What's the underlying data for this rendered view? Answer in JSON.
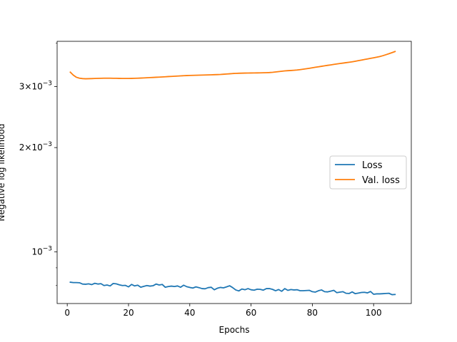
{
  "chart_data": {
    "type": "line",
    "title": "",
    "xlabel": "Epochs",
    "ylabel": "Negative log likelihood",
    "yscale": "log",
    "xlim": [
      -3.3,
      112.3
    ],
    "ylim": [
      0.00071,
      0.00405
    ],
    "grid": false,
    "legend_position": "center-right",
    "x_ticks": [
      0,
      20,
      40,
      60,
      80,
      100
    ],
    "x_tick_labels": [
      "0",
      "20",
      "40",
      "60",
      "80",
      "100"
    ],
    "y_ticks": [
      0.001,
      0.002,
      0.003
    ],
    "y_tick_labels": [
      {
        "base": "10",
        "exp": "−3"
      },
      {
        "coef": "2",
        "base": "10",
        "exp": "−3"
      },
      {
        "coef": "3",
        "base": "10",
        "exp": "−3"
      }
    ],
    "series": [
      {
        "name": "Loss",
        "color": "#1f77b4",
        "x": [
          1,
          2,
          3,
          4,
          5,
          6,
          7,
          8,
          9,
          10,
          11,
          12,
          13,
          14,
          15,
          16,
          17,
          18,
          19,
          20,
          21,
          22,
          23,
          24,
          25,
          26,
          27,
          28,
          29,
          30,
          31,
          32,
          33,
          34,
          35,
          36,
          37,
          38,
          39,
          40,
          41,
          42,
          43,
          44,
          45,
          46,
          47,
          48,
          49,
          50,
          51,
          52,
          53,
          54,
          55,
          56,
          57,
          58,
          59,
          60,
          61,
          62,
          63,
          64,
          65,
          66,
          67,
          68,
          69,
          70,
          71,
          72,
          73,
          74,
          75,
          76,
          77,
          78,
          79,
          80,
          81,
          82,
          83,
          84,
          85,
          86,
          87,
          88,
          89,
          90,
          91,
          92,
          93,
          94,
          95,
          96,
          97,
          98,
          99,
          100,
          101,
          102,
          103,
          104,
          105,
          106,
          107
        ],
        "values": [
          0.000818,
          0.000816,
          0.000816,
          0.000815,
          0.000808,
          0.000807,
          0.000809,
          0.000805,
          0.000812,
          0.000808,
          0.00081,
          0.0008,
          0.000803,
          0.000798,
          0.000811,
          0.000809,
          0.000804,
          0.0008,
          0.000801,
          0.000793,
          0.000806,
          0.000798,
          0.000802,
          0.000791,
          0.000796,
          0.0008,
          0.000797,
          0.000799,
          0.000808,
          0.000803,
          0.000806,
          0.000791,
          0.000795,
          0.000797,
          0.000795,
          0.000798,
          0.000791,
          0.000802,
          0.000794,
          0.00079,
          0.000787,
          0.000793,
          0.000789,
          0.000784,
          0.000783,
          0.000789,
          0.000791,
          0.000778,
          0.000786,
          0.00079,
          0.000788,
          0.000793,
          0.000799,
          0.000789,
          0.000777,
          0.000772,
          0.000782,
          0.000778,
          0.000784,
          0.000778,
          0.000776,
          0.000781,
          0.00078,
          0.000776,
          0.000784,
          0.000784,
          0.00078,
          0.000773,
          0.000779,
          0.00077,
          0.000784,
          0.000775,
          0.000779,
          0.000777,
          0.000778,
          0.000773,
          0.000773,
          0.000774,
          0.000775,
          0.000768,
          0.000766,
          0.000773,
          0.000777,
          0.000768,
          0.000767,
          0.000771,
          0.000775,
          0.000763,
          0.000766,
          0.000768,
          0.00076,
          0.000759,
          0.000767,
          0.000758,
          0.000761,
          0.000764,
          0.000765,
          0.000762,
          0.000769,
          0.000755,
          0.000757,
          0.000757,
          0.000758,
          0.000759,
          0.00076,
          0.000753,
          0.000754
        ]
      },
      {
        "name": "Val. loss",
        "color": "#ff7f0e",
        "x": [
          1,
          2,
          3,
          4,
          5,
          6,
          7,
          8,
          9,
          10,
          11,
          12,
          13,
          14,
          15,
          16,
          17,
          18,
          19,
          20,
          21,
          22,
          23,
          24,
          25,
          26,
          27,
          28,
          29,
          30,
          31,
          32,
          33,
          34,
          35,
          36,
          37,
          38,
          39,
          40,
          41,
          42,
          43,
          44,
          45,
          46,
          47,
          48,
          49,
          50,
          51,
          52,
          53,
          54,
          55,
          56,
          57,
          58,
          59,
          60,
          61,
          62,
          63,
          64,
          65,
          66,
          67,
          68,
          69,
          70,
          71,
          72,
          73,
          74,
          75,
          76,
          77,
          78,
          79,
          80,
          81,
          82,
          83,
          84,
          85,
          86,
          87,
          88,
          89,
          90,
          91,
          92,
          93,
          94,
          95,
          96,
          97,
          98,
          99,
          100,
          101,
          102,
          103,
          104,
          105,
          106,
          107
        ],
        "values": [
          0.0033,
          0.003235,
          0.00319,
          0.00317,
          0.003162,
          0.003158,
          0.00316,
          0.003162,
          0.003165,
          0.003167,
          0.003169,
          0.00317,
          0.00317,
          0.00317,
          0.003169,
          0.003168,
          0.003166,
          0.003165,
          0.003165,
          0.003165,
          0.003166,
          0.003168,
          0.00317,
          0.003173,
          0.003176,
          0.00318,
          0.003183,
          0.003186,
          0.00319,
          0.003193,
          0.003197,
          0.003201,
          0.003205,
          0.003208,
          0.003212,
          0.003216,
          0.00322,
          0.003223,
          0.003226,
          0.003229,
          0.003231,
          0.003233,
          0.003235,
          0.003237,
          0.003239,
          0.003241,
          0.003243,
          0.003245,
          0.003247,
          0.00325,
          0.003255,
          0.00326,
          0.003265,
          0.00327,
          0.003273,
          0.003276,
          0.003278,
          0.00328,
          0.003281,
          0.003282,
          0.003283,
          0.003284,
          0.003285,
          0.003287,
          0.003289,
          0.003292,
          0.003297,
          0.003304,
          0.003312,
          0.00332,
          0.003328,
          0.003333,
          0.003337,
          0.003342,
          0.003348,
          0.003356,
          0.003365,
          0.003375,
          0.003386,
          0.003397,
          0.003409,
          0.00342,
          0.003431,
          0.003442,
          0.003453,
          0.003463,
          0.003474,
          0.003485,
          0.003495,
          0.003505,
          0.003515,
          0.003525,
          0.003535,
          0.003548,
          0.003562,
          0.003575,
          0.003589,
          0.003603,
          0.003617,
          0.003631,
          0.003645,
          0.003661,
          0.003681,
          0.003705,
          0.00373,
          0.003757,
          0.003785
        ]
      }
    ]
  }
}
